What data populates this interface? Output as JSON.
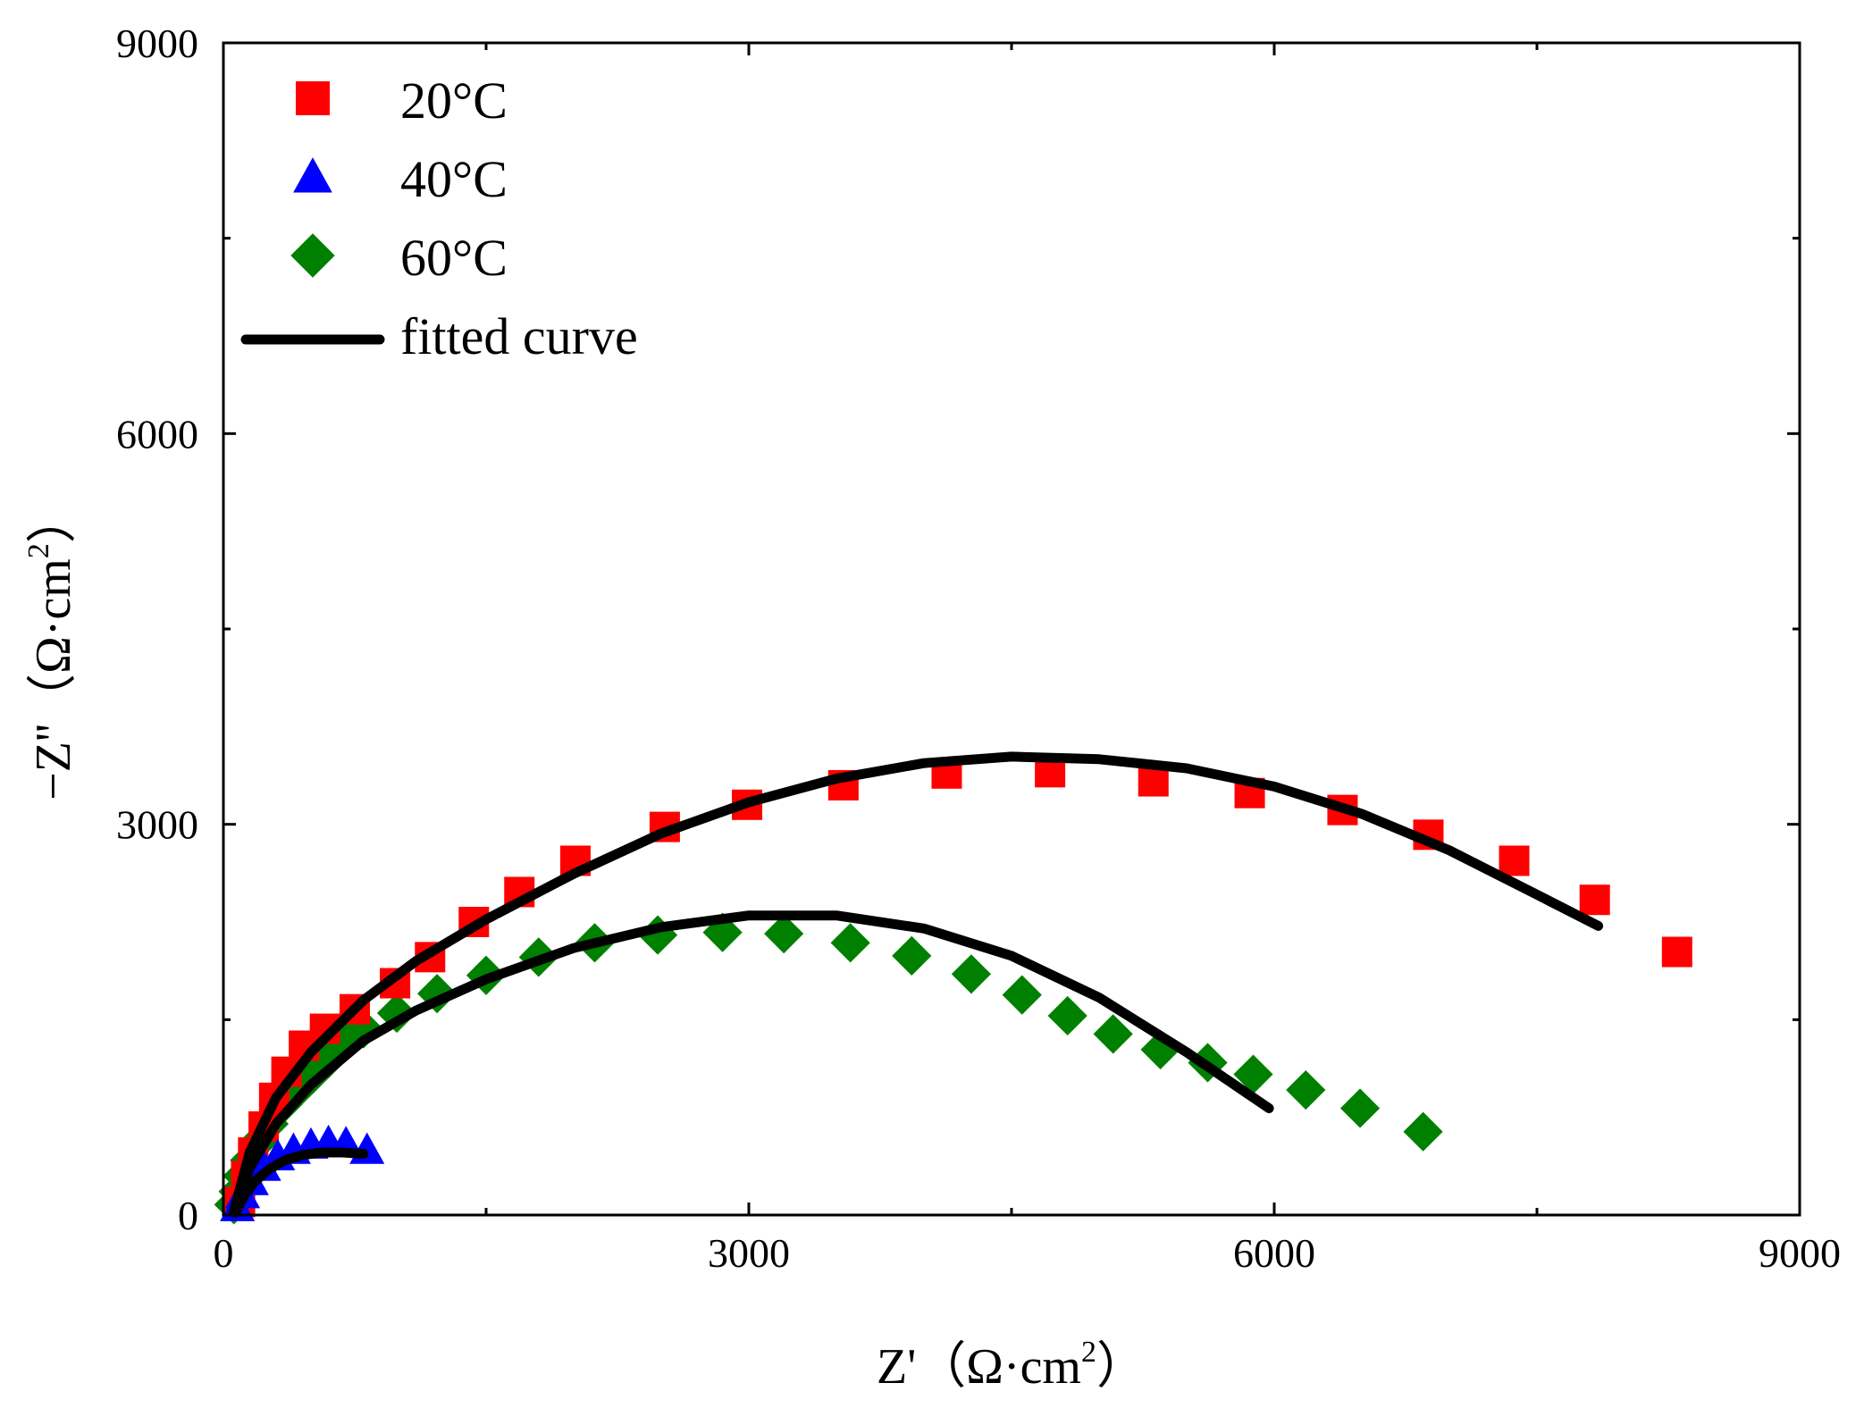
{
  "chart_data": {
    "type": "scatter",
    "title": "",
    "xlabel": "Z'（Ω·cm2）",
    "ylabel": "−Z''（Ω·cm2）",
    "xlabel_parts": {
      "main": "Z'（Ω·cm",
      "sup": "2",
      "end": "）"
    },
    "ylabel_parts": {
      "main": "−Z''（Ω·cm",
      "sup": "2",
      "end": "）"
    },
    "xlim": [
      0,
      9000
    ],
    "ylim": [
      0,
      9000
    ],
    "xticks": [
      0,
      3000,
      6000,
      9000
    ],
    "yticks": [
      0,
      3000,
      6000,
      9000
    ],
    "xtick_labels": [
      "0",
      "3000",
      "6000",
      "9000"
    ],
    "ytick_labels": [
      "0",
      "3000",
      "6000",
      "9000"
    ],
    "minor_xticks": [
      1500,
      4500,
      7500
    ],
    "minor_yticks": [
      1500,
      4500,
      7500
    ],
    "grid": false,
    "legend_position": "top-left",
    "series": [
      {
        "name": "20°C",
        "marker": "square",
        "color": "#ff0000",
        "points": [
          [
            95,
            100
          ],
          [
            130,
            300
          ],
          [
            170,
            480
          ],
          [
            230,
            680
          ],
          [
            290,
            900
          ],
          [
            360,
            1100
          ],
          [
            460,
            1300
          ],
          [
            580,
            1430
          ],
          [
            750,
            1580
          ],
          [
            980,
            1780
          ],
          [
            1180,
            1980
          ],
          [
            1430,
            2250
          ],
          [
            1690,
            2480
          ],
          [
            2010,
            2720
          ],
          [
            2520,
            2980
          ],
          [
            2990,
            3150
          ],
          [
            3540,
            3300
          ],
          [
            4130,
            3390
          ],
          [
            4720,
            3400
          ],
          [
            5310,
            3330
          ],
          [
            5860,
            3240
          ],
          [
            6390,
            3110
          ],
          [
            6880,
            2920
          ],
          [
            7370,
            2720
          ],
          [
            7830,
            2420
          ],
          [
            8300,
            2020
          ]
        ]
      },
      {
        "name": "40°C",
        "marker": "triangle",
        "color": "#0000ff",
        "points": [
          [
            80,
            60
          ],
          [
            110,
            160
          ],
          [
            160,
            260
          ],
          [
            230,
            370
          ],
          [
            310,
            450
          ],
          [
            400,
            500
          ],
          [
            500,
            540
          ],
          [
            600,
            560
          ],
          [
            700,
            550
          ],
          [
            820,
            500
          ]
        ]
      },
      {
        "name": "60°C",
        "marker": "diamond",
        "color": "#008000",
        "points": [
          [
            60,
            80
          ],
          [
            85,
            180
          ],
          [
            110,
            300
          ],
          [
            150,
            420
          ],
          [
            200,
            560
          ],
          [
            260,
            700
          ],
          [
            340,
            850
          ],
          [
            420,
            960
          ],
          [
            510,
            1080
          ],
          [
            600,
            1200
          ],
          [
            700,
            1330
          ],
          [
            800,
            1430
          ],
          [
            990,
            1550
          ],
          [
            1220,
            1700
          ],
          [
            1500,
            1840
          ],
          [
            1800,
            1980
          ],
          [
            2120,
            2090
          ],
          [
            2480,
            2150
          ],
          [
            2850,
            2170
          ],
          [
            3200,
            2160
          ],
          [
            3580,
            2090
          ],
          [
            3930,
            1990
          ],
          [
            4270,
            1850
          ],
          [
            4560,
            1690
          ],
          [
            4820,
            1530
          ],
          [
            5080,
            1390
          ],
          [
            5350,
            1270
          ],
          [
            5620,
            1170
          ],
          [
            5880,
            1080
          ],
          [
            6180,
            960
          ],
          [
            6490,
            820
          ],
          [
            6850,
            640
          ]
        ]
      }
    ],
    "fitted_curves": [
      {
        "name": "fitted curve (20°C)",
        "points": [
          [
            60,
            30
          ],
          [
            150,
            480
          ],
          [
            300,
            900
          ],
          [
            500,
            1250
          ],
          [
            800,
            1650
          ],
          [
            1100,
            1950
          ],
          [
            1500,
            2270
          ],
          [
            2000,
            2620
          ],
          [
            2500,
            2930
          ],
          [
            3000,
            3170
          ],
          [
            3500,
            3350
          ],
          [
            4000,
            3470
          ],
          [
            4500,
            3520
          ],
          [
            5000,
            3500
          ],
          [
            5500,
            3430
          ],
          [
            6000,
            3290
          ],
          [
            6500,
            3080
          ],
          [
            7000,
            2800
          ],
          [
            7500,
            2460
          ],
          [
            7850,
            2220
          ]
        ]
      },
      {
        "name": "fitted curve (60°C)",
        "points": [
          [
            60,
            20
          ],
          [
            150,
            360
          ],
          [
            300,
            700
          ],
          [
            500,
            1000
          ],
          [
            800,
            1340
          ],
          [
            1100,
            1570
          ],
          [
            1500,
            1810
          ],
          [
            2000,
            2050
          ],
          [
            2500,
            2210
          ],
          [
            3000,
            2300
          ],
          [
            3500,
            2300
          ],
          [
            4000,
            2200
          ],
          [
            4500,
            1990
          ],
          [
            5000,
            1670
          ],
          [
            5500,
            1250
          ],
          [
            5970,
            820
          ]
        ]
      },
      {
        "name": "fitted curve (40°C)",
        "points": [
          [
            70,
            20
          ],
          [
            120,
            150
          ],
          [
            180,
            260
          ],
          [
            260,
            350
          ],
          [
            350,
            420
          ],
          [
            450,
            460
          ],
          [
            560,
            480
          ],
          [
            680,
            480
          ],
          [
            800,
            470
          ]
        ]
      }
    ],
    "legend": [
      {
        "label": "20°C",
        "marker": "square",
        "color": "#ff0000"
      },
      {
        "label": "40°C",
        "marker": "triangle",
        "color": "#0000ff"
      },
      {
        "label": "60°C",
        "marker": "diamond",
        "color": "#008000"
      },
      {
        "label": "fitted curve",
        "marker": "line",
        "color": "#000000"
      }
    ]
  }
}
